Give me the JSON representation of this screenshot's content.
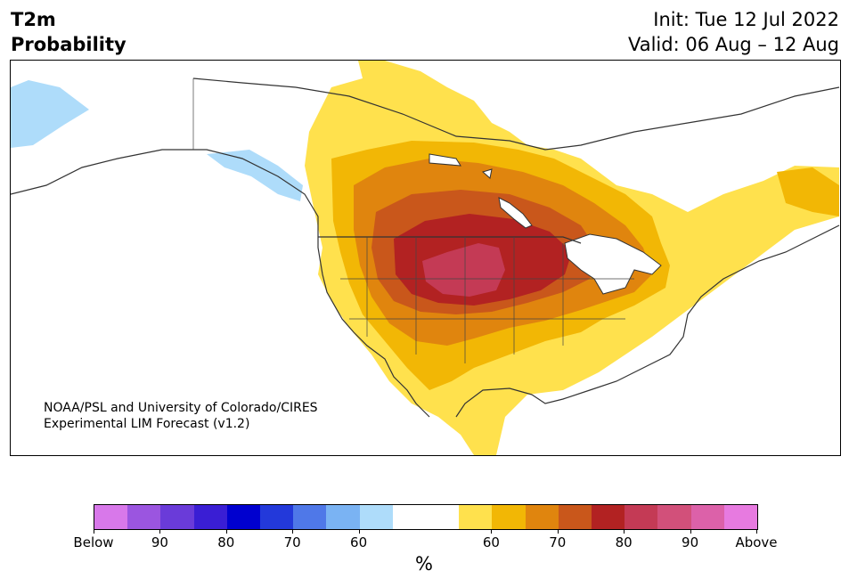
{
  "title": {
    "line1": "T2m",
    "line2": "Probability",
    "init": "Init: Tue 12 Jul 2022",
    "valid": "Valid: 06 Aug – 12 Aug"
  },
  "credit": {
    "line1": "NOAA/PSL and University of Colorado/CIRES",
    "line2": "Experimental LIM Forecast (v1.2)"
  },
  "colorbar": {
    "colors": [
      "#d878ea",
      "#9b55e0",
      "#6a3bd9",
      "#3a1ed4",
      "#0000cf",
      "#2339da",
      "#4f78e8",
      "#7ab3f3",
      "#aedcfa",
      "#ffffff",
      "#ffffff",
      "#ffe14d",
      "#f2b705",
      "#e0850e",
      "#c9571b",
      "#b22222",
      "#c43a55",
      "#d2507a",
      "#dc61a9",
      "#e77ae0"
    ],
    "ticks": [
      "Below",
      "90",
      "80",
      "70",
      "60",
      "60",
      "70",
      "80",
      "90",
      "Above"
    ],
    "unit": "%"
  },
  "map": {
    "region": "North America",
    "regions": [
      {
        "name": "alaska-below-normal",
        "color": "#aedcfa"
      },
      {
        "name": "pacific-northwest-below-normal",
        "color": "#aedcfa"
      },
      {
        "name": "above-50-60",
        "color": "#ffe14d"
      },
      {
        "name": "above-60-70",
        "color": "#f2b705"
      },
      {
        "name": "above-70-80",
        "color": "#e0850e"
      },
      {
        "name": "above-80",
        "color": "#c9571b"
      },
      {
        "name": "above-85",
        "color": "#b22222"
      },
      {
        "name": "above-90",
        "color": "#c43a55"
      }
    ]
  }
}
